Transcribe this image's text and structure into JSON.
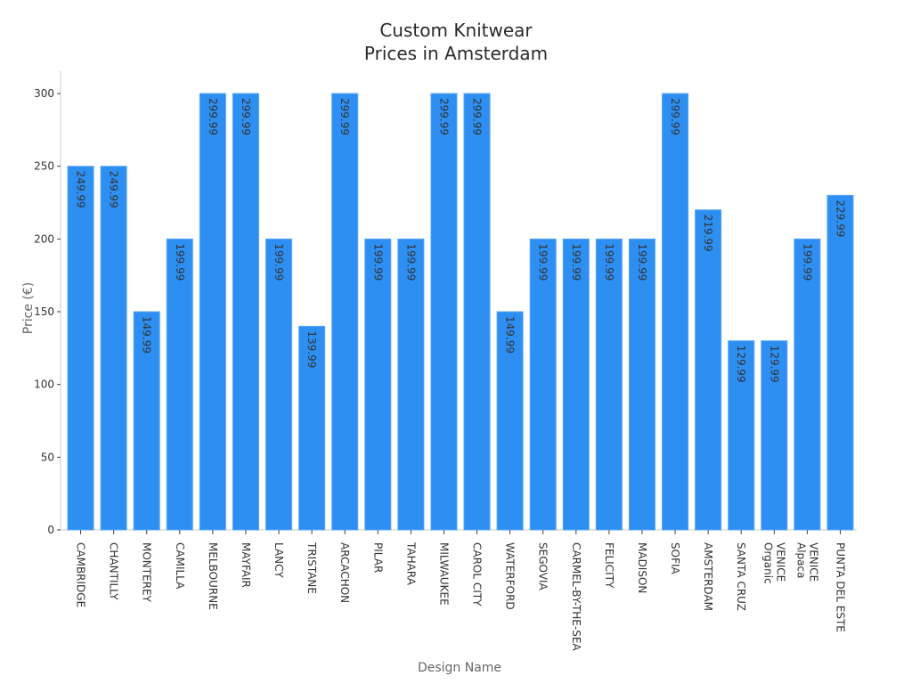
{
  "title_line1": "Custom Knitwear",
  "title_line2": "Prices in Amsterdam",
  "chart_data": {
    "type": "bar",
    "title": "Custom Knitwear Prices in Amsterdam",
    "xlabel": "Design Name",
    "ylabel": "Price (€)",
    "ylim": [
      0,
      315
    ],
    "yticks": [
      0,
      50,
      100,
      150,
      200,
      250,
      300
    ],
    "grid": false,
    "bar_color": "#2e8ff2",
    "categories": [
      "CAMBRIDGE",
      "CHANTILLY",
      "MONTEREY",
      "CAMILLA",
      "MELBOURNE",
      "MAYFAIR",
      "LANCY",
      "TRISTANE",
      "ARCACHON",
      "PILAR",
      "TAHARA",
      "MILWAUKEE",
      "CAROL CITY",
      "WATERFORD",
      "SEGOVIA",
      "CARMEL-BY-THE-SEA",
      "FELICITY",
      "MADISON",
      "SOFIA",
      "AMSTERDAM",
      "SANTA CRUZ",
      "VENICE Organic",
      "VENICE Alpaca",
      "PUNTA DEL ESTE"
    ],
    "values": [
      249.99,
      249.99,
      149.99,
      199.99,
      299.99,
      299.99,
      199.99,
      139.99,
      299.99,
      199.99,
      199.99,
      299.99,
      299.99,
      149.99,
      199.99,
      199.99,
      199.99,
      199.99,
      299.99,
      219.99,
      129.99,
      129.99,
      199.99,
      229.99
    ],
    "value_labels": [
      "249.99",
      "249.99",
      "149.99",
      "199.99",
      "299.99",
      "299.99",
      "199.99",
      "139.99",
      "299.99",
      "199.99",
      "199.99",
      "299.99",
      "299.99",
      "149.99",
      "199.99",
      "199.99",
      "199.99",
      "199.99",
      "299.99",
      "219.99",
      "129.99",
      "129.99",
      "199.99",
      "229.99"
    ]
  }
}
